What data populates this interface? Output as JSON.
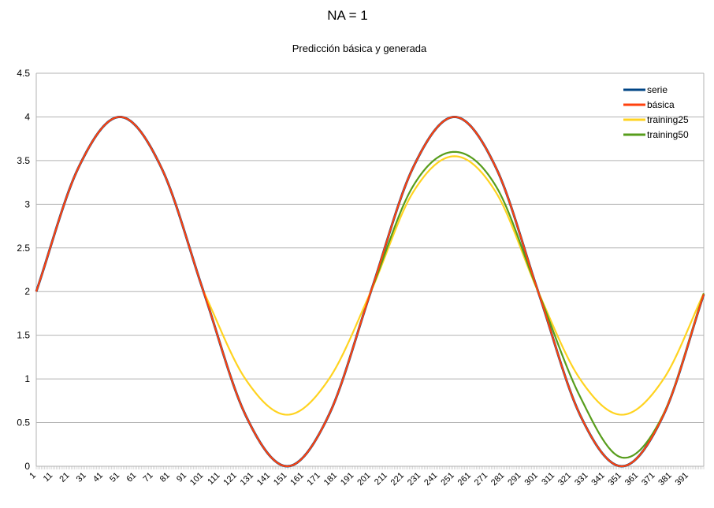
{
  "chart_data": {
    "type": "line",
    "title": "NA = 1",
    "subtitle": "Predicción básica y generada",
    "xlabel": "",
    "ylabel": "",
    "x_range": [
      1,
      400
    ],
    "ylim": [
      0,
      4.5
    ],
    "y_ticks": [
      "0",
      "0.5",
      "1",
      "1.5",
      "2",
      "2.5",
      "3",
      "3.5",
      "4",
      "4.5"
    ],
    "x_tick_labels": [
      "1",
      "11",
      "21",
      "31",
      "41",
      "51",
      "61",
      "71",
      "81",
      "91",
      "101",
      "111",
      "121",
      "131",
      "141",
      "151",
      "161",
      "171",
      "181",
      "191",
      "201",
      "211",
      "221",
      "231",
      "241",
      "251",
      "261",
      "271",
      "281",
      "291",
      "301",
      "311",
      "321",
      "331",
      "341",
      "351",
      "361",
      "371",
      "381",
      "391"
    ],
    "grid": true,
    "legend_position": "top-right",
    "series": [
      {
        "name": "serie",
        "color": "#004586",
        "x": [
          1,
          26,
          51,
          76,
          101,
          126,
          151,
          176,
          201,
          226,
          251,
          276,
          301,
          326,
          351,
          376,
          400
        ],
        "values": [
          2.0,
          3.41,
          4.0,
          3.41,
          2.0,
          0.59,
          0.0,
          0.59,
          2.0,
          3.41,
          4.0,
          3.41,
          2.0,
          0.59,
          0.0,
          0.59,
          1.97
        ]
      },
      {
        "name": "básica",
        "color": "#ff420e",
        "x": [
          1,
          26,
          51,
          76,
          101,
          126,
          151,
          176,
          201,
          226,
          251,
          276,
          301,
          326,
          351,
          376,
          400
        ],
        "values": [
          2.0,
          3.41,
          4.0,
          3.41,
          2.0,
          0.59,
          0.0,
          0.59,
          2.0,
          3.41,
          4.0,
          3.41,
          2.0,
          0.59,
          0.0,
          0.59,
          1.97
        ]
      },
      {
        "name": "training25",
        "color": "#ffd320",
        "x": [
          101,
          126,
          151,
          176,
          201,
          226,
          251,
          276,
          301,
          326,
          351,
          376,
          400
        ],
        "values": [
          2.0,
          1.0,
          0.59,
          1.0,
          2.0,
          3.13,
          3.55,
          3.13,
          2.0,
          1.0,
          0.59,
          1.0,
          1.98
        ]
      },
      {
        "name": "training50",
        "color": "#579d1c",
        "x": [
          201,
          226,
          251,
          276,
          301,
          326,
          351,
          376,
          400
        ],
        "values": [
          2.0,
          3.2,
          3.6,
          3.2,
          2.0,
          0.8,
          0.1,
          0.6,
          1.98
        ]
      }
    ]
  }
}
